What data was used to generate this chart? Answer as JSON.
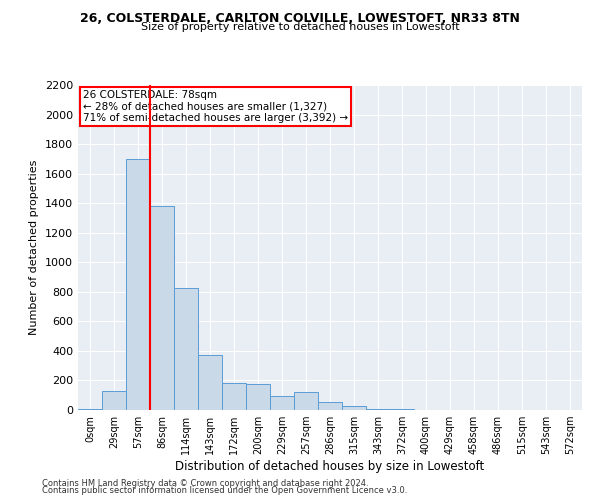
{
  "title1": "26, COLSTERDALE, CARLTON COLVILLE, LOWESTOFT, NR33 8TN",
  "title2": "Size of property relative to detached houses in Lowestoft",
  "xlabel": "Distribution of detached houses by size in Lowestoft",
  "ylabel": "Number of detached properties",
  "bar_color": "#c9d9e8",
  "bar_edge_color": "#5b9bd5",
  "bg_color": "#e8eef4",
  "categories": [
    "0sqm",
    "29sqm",
    "57sqm",
    "86sqm",
    "114sqm",
    "143sqm",
    "172sqm",
    "200sqm",
    "229sqm",
    "257sqm",
    "286sqm",
    "315sqm",
    "343sqm",
    "372sqm",
    "400sqm",
    "429sqm",
    "458sqm",
    "486sqm",
    "515sqm",
    "543sqm",
    "572sqm"
  ],
  "values": [
    5,
    130,
    1700,
    1380,
    825,
    375,
    185,
    175,
    95,
    120,
    55,
    30,
    10,
    5,
    0,
    0,
    0,
    0,
    0,
    0,
    0
  ],
  "ylim": [
    0,
    2200
  ],
  "yticks": [
    0,
    200,
    400,
    600,
    800,
    1000,
    1200,
    1400,
    1600,
    1800,
    2000,
    2200
  ],
  "property_line_x": 3,
  "annotation_title": "26 COLSTERDALE: 78sqm",
  "annotation_line1": "← 28% of detached houses are smaller (1,327)",
  "annotation_line2": "71% of semi-detached houses are larger (3,392) →",
  "footer1": "Contains HM Land Registry data © Crown copyright and database right 2024.",
  "footer2": "Contains public sector information licensed under the Open Government Licence v3.0."
}
